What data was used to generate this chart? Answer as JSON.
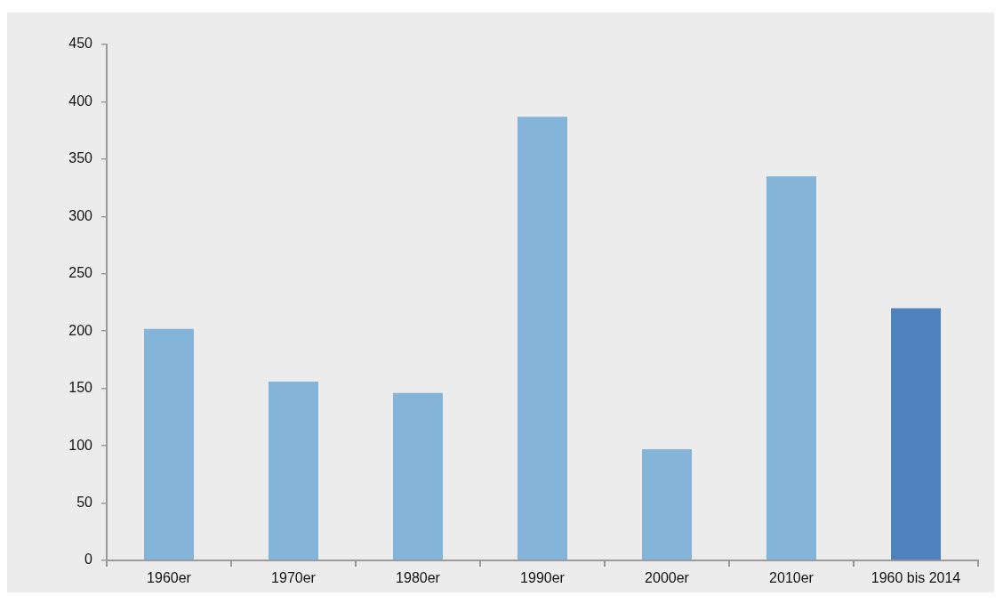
{
  "chart_data": {
    "type": "bar",
    "categories": [
      "1960er",
      "1970er",
      "1980er",
      "1990er",
      "2000er",
      "2010er",
      "1960 bis 2014"
    ],
    "values": [
      202,
      156,
      146,
      387,
      97,
      335,
      220
    ],
    "colors": [
      "#84b4d8",
      "#84b4d8",
      "#84b4d8",
      "#84b4d8",
      "#84b4d8",
      "#84b4d8",
      "#4f81bd"
    ],
    "ylim": [
      0,
      450
    ],
    "yticks": [
      0,
      50,
      100,
      150,
      200,
      250,
      300,
      350,
      400,
      450
    ],
    "grid": false,
    "legend": false
  }
}
